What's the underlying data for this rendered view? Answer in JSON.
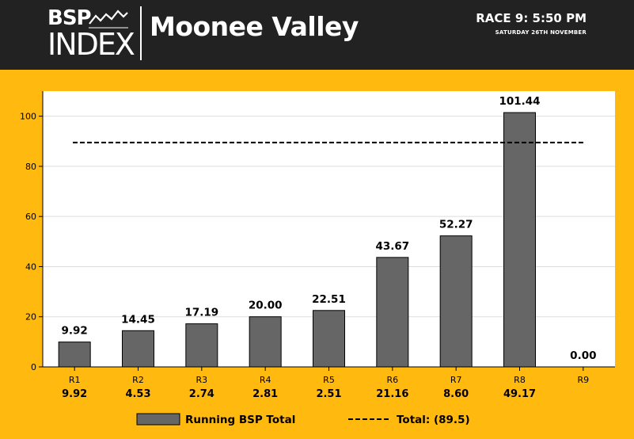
{
  "header": {
    "logo_top": "BSP",
    "logo_bottom": "INDEX",
    "venue": "Moonee Valley",
    "race": "RACE 9: 5:50 PM",
    "date": "SATURDAY 26TH NOVEMBER"
  },
  "colors": {
    "background": "#FFB90F",
    "header": "#222222",
    "bar": "#666666",
    "plot": "#FFFFFF"
  },
  "chart_data": {
    "type": "bar",
    "categories": [
      "R1",
      "R2",
      "R3",
      "R4",
      "R5",
      "R6",
      "R7",
      "R8",
      "R9"
    ],
    "values": [
      9.92,
      14.45,
      17.19,
      20.0,
      22.51,
      43.67,
      52.27,
      101.44,
      0
    ],
    "value_labels": [
      "9.92",
      "14.45",
      "17.19",
      "20.00",
      "22.51",
      "43.67",
      "52.27",
      "101.44",
      "0.00"
    ],
    "increments": [
      "9.92",
      "4.53",
      "2.74",
      "2.81",
      "2.51",
      "21.16",
      "8.60",
      "49.17",
      ""
    ],
    "ylim": [
      0,
      110
    ],
    "yticks": [
      0,
      20,
      40,
      60,
      80,
      100
    ],
    "grid": true,
    "reference_line": {
      "value": 89.5,
      "style": "dashed",
      "label": "Total: (89.5)"
    },
    "series": [
      {
        "name": "Running BSP Total",
        "values": [
          9.92,
          14.45,
          17.19,
          20.0,
          22.51,
          43.67,
          52.27,
          101.44,
          0
        ]
      }
    ],
    "legend": {
      "placement": "bottom",
      "items": [
        "Running BSP Total",
        "Total: (89.5)"
      ]
    }
  }
}
